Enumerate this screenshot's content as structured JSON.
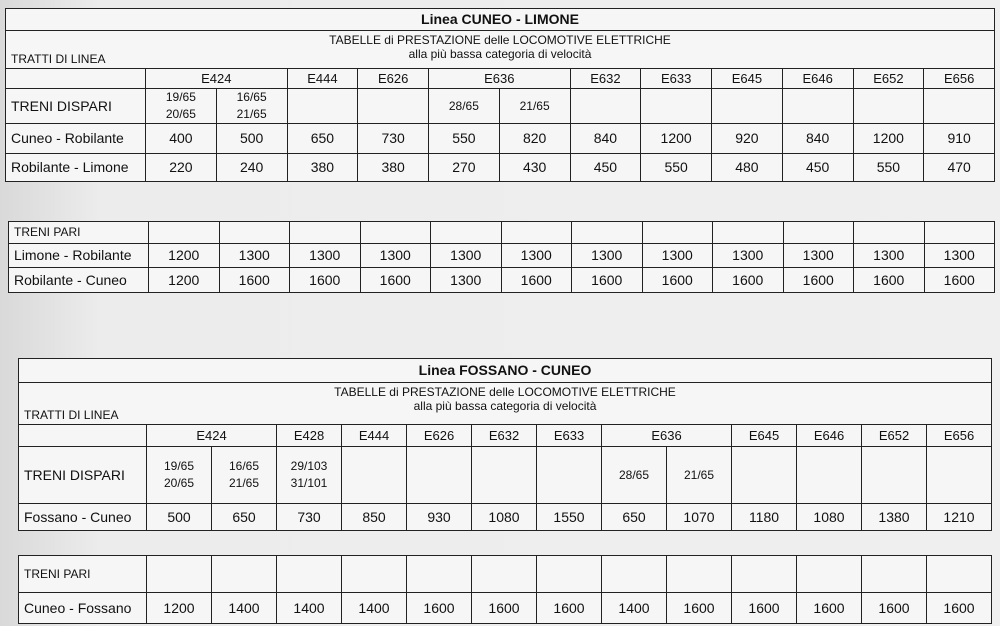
{
  "sections": [
    {
      "title": "Linea CUNEO - LIMONE",
      "subtitle_line1": "TABELLE di PRESTAZIONE delle LOCOMOTIVE ELETTRICHE",
      "subtitle_line2": "alla più bassa categoria di velocità",
      "tratti_label": "TRATTI DI LINEA",
      "locomotives": [
        {
          "name": "E424",
          "span": 2
        },
        {
          "name": "E444",
          "span": 1
        },
        {
          "name": "E626",
          "span": 1
        },
        {
          "name": "E636",
          "span": 2
        },
        {
          "name": "E632",
          "span": 1
        },
        {
          "name": "E633",
          "span": 1
        },
        {
          "name": "E645",
          "span": 1
        },
        {
          "name": "E646",
          "span": 1
        },
        {
          "name": "E652",
          "span": 1
        },
        {
          "name": "E656",
          "span": 1
        }
      ],
      "dispari": {
        "label": "TRENI DISPARI",
        "variants": [
          "19/65\n20/65",
          "16/65\n21/65",
          "",
          "",
          "28/65",
          "21/65",
          "",
          "",
          "",
          "",
          "",
          ""
        ],
        "rows": [
          {
            "route": "Cuneo - Robilante",
            "values": [
              "400",
              "500",
              "650",
              "730",
              "550",
              "820",
              "840",
              "1200",
              "920",
              "840",
              "1200",
              "910"
            ]
          },
          {
            "route": "Robilante - Limone",
            "values": [
              "220",
              "240",
              "380",
              "380",
              "270",
              "430",
              "450",
              "550",
              "480",
              "450",
              "550",
              "470"
            ]
          }
        ]
      },
      "pari": {
        "label": "TRENI PARI",
        "rows": [
          {
            "route": "Limone - Robilante",
            "values": [
              "1200",
              "1300",
              "1300",
              "1300",
              "1300",
              "1300",
              "1300",
              "1300",
              "1300",
              "1300",
              "1300",
              "1300"
            ]
          },
          {
            "route": "Robilante - Cuneo",
            "values": [
              "1200",
              "1600",
              "1600",
              "1600",
              "1300",
              "1600",
              "1600",
              "1600",
              "1600",
              "1600",
              "1600",
              "1600"
            ]
          }
        ]
      }
    },
    {
      "title": "Linea FOSSANO - CUNEO",
      "subtitle_line1": "TABELLE di PRESTAZIONE delle LOCOMOTIVE ELETTRICHE",
      "subtitle_line2": "alla più bassa categoria di velocità",
      "tratti_label": "TRATTI DI LINEA",
      "locomotives": [
        {
          "name": "E424",
          "span": 2
        },
        {
          "name": "E428",
          "span": 1
        },
        {
          "name": "E444",
          "span": 1
        },
        {
          "name": "E626",
          "span": 1
        },
        {
          "name": "E632",
          "span": 1
        },
        {
          "name": "E633",
          "span": 1
        },
        {
          "name": "E636",
          "span": 2
        },
        {
          "name": "E645",
          "span": 1
        },
        {
          "name": "E646",
          "span": 1
        },
        {
          "name": "E652",
          "span": 1
        },
        {
          "name": "E656",
          "span": 1
        }
      ],
      "dispari": {
        "label": "TRENI DISPARI",
        "variants": [
          "19/65\n20/65",
          "16/65\n21/65",
          "29/103\n31/101",
          "",
          "",
          "",
          "",
          "28/65",
          "21/65",
          "",
          "",
          "",
          ""
        ],
        "rows": [
          {
            "route": "Fossano - Cuneo",
            "values": [
              "500",
              "650",
              "730",
              "850",
              "930",
              "1080",
              "1550",
              "650",
              "1070",
              "1180",
              "1080",
              "1380",
              "1210"
            ]
          }
        ]
      },
      "pari": {
        "label": "TRENI PARI",
        "rows": [
          {
            "route": "Cuneo - Fossano",
            "values": [
              "1200",
              "1400",
              "1400",
              "1400",
              "1600",
              "1600",
              "1600",
              "1400",
              "1600",
              "1600",
              "1600",
              "1600",
              "1600"
            ]
          }
        ]
      }
    }
  ]
}
